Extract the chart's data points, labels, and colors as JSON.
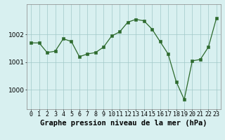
{
  "x": [
    0,
    1,
    2,
    3,
    4,
    5,
    6,
    7,
    8,
    9,
    10,
    11,
    12,
    13,
    14,
    15,
    16,
    17,
    18,
    19,
    20,
    21,
    22,
    23
  ],
  "y": [
    1001.7,
    1001.7,
    1001.35,
    1001.4,
    1001.85,
    1001.75,
    1001.2,
    1001.3,
    1001.35,
    1001.55,
    1001.95,
    1002.1,
    1002.45,
    1002.55,
    1002.5,
    1002.2,
    1001.75,
    1001.3,
    1000.3,
    999.65,
    1001.05,
    1001.1,
    1001.55,
    1002.6
  ],
  "line_color": "#2d6a2d",
  "marker_color": "#2d6a2d",
  "bg_color": "#d8f0f0",
  "grid_color": "#a0c8c8",
  "xlabel": "Graphe pression niveau de la mer (hPa)",
  "xlabel_fontsize": 7.5,
  "tick_fontsize": 6.0,
  "yticks": [
    1000,
    1001,
    1002
  ],
  "ylim": [
    999.3,
    1003.1
  ],
  "xlim": [
    -0.5,
    23.5
  ]
}
